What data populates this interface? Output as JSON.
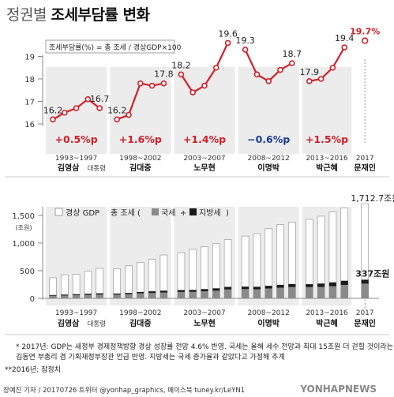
{
  "title": {
    "light": "정권별",
    "bold": "조세부담률 변화"
  },
  "top_box_label": "조세부담률(%) = 총 조세 / 경상GDP×100",
  "bottom_legend": {
    "gdp": "경상 GDP",
    "tax_prefix": "총 조세 (",
    "national": "국세",
    "sep": "+",
    "local": "지방세",
    "tax_suffix": ")"
  },
  "footnotes": [
    "* 2017년: GDP는 새정부 경제정책방향 경상 성장률 전망 4.6% 반영. 국세는 올해 세수 전망과 최대 15조원 더 걷힐 것이라는",
    "김동연 부총리 겸 기획재정부장관 언급 반영. 지방세는 국세 증가율과 같았다고 가정해 추계",
    "**2016년: 잠정치"
  ],
  "credit": "장예진 기자 / 20170726 트위터 @yonhap_graphics, 페이스북 tuney.kr/LeYN1",
  "agency": "YONHAPNEWS",
  "chart_data": [
    {
      "type": "line",
      "title": "조세부담률(%) = 총 조세 / 경상GDP×100",
      "ylim": [
        16,
        20
      ],
      "yticks": [
        16,
        17,
        18,
        19
      ],
      "x": [
        "1993",
        "1994",
        "1995",
        "1996",
        "1997",
        "1998",
        "1999",
        "2000",
        "2001",
        "2002",
        "2003",
        "2004",
        "2005",
        "2006",
        "2007",
        "2008",
        "2009",
        "2010",
        "2011",
        "2012",
        "2013",
        "2014",
        "2015",
        "2016",
        "2017"
      ],
      "values": [
        16.2,
        16.5,
        16.7,
        17.1,
        16.7,
        16.2,
        16.4,
        17.8,
        17.7,
        17.8,
        18.2,
        17.4,
        17.7,
        18.5,
        19.6,
        19.3,
        18.2,
        17.9,
        18.4,
        18.7,
        17.9,
        18.0,
        18.5,
        19.4,
        19.7
      ],
      "point_labels": [
        {
          "x": "1993",
          "label": "16.2"
        },
        {
          "x": "1997",
          "label": "16.7"
        },
        {
          "x": "1998",
          "label": "16.2"
        },
        {
          "x": "2002",
          "label": "17.8"
        },
        {
          "x": "2003",
          "label": "18.2"
        },
        {
          "x": "2007",
          "label": "19.6"
        },
        {
          "x": "2008",
          "label": "19.3"
        },
        {
          "x": "2012",
          "label": "18.7"
        },
        {
          "x": "2013",
          "label": "17.9"
        },
        {
          "x": "2016",
          "label": "19.4"
        },
        {
          "x": "2017",
          "label": "19.7%"
        }
      ],
      "periods": [
        {
          "range": "1993~1997",
          "name": "김영삼",
          "suffix": "대통령",
          "change": "+0.5%p",
          "from": "1993",
          "to": "1997"
        },
        {
          "range": "1998~2002",
          "name": "김대중",
          "suffix": "",
          "change": "+1.6%p",
          "from": "1998",
          "to": "2002"
        },
        {
          "range": "2003~2007",
          "name": "노무현",
          "suffix": "",
          "change": "+1.4%p",
          "from": "2003",
          "to": "2007"
        },
        {
          "range": "2008~2012",
          "name": "이명박",
          "suffix": "",
          "change": "−0.6%p",
          "from": "2008",
          "to": "2012"
        },
        {
          "range": "2013~2016",
          "name": "박근혜",
          "suffix": "",
          "change": "+1.5%p",
          "from": "2013",
          "to": "2016"
        },
        {
          "range": "2017",
          "name": "문재인",
          "suffix": "",
          "change": "",
          "from": "2017",
          "to": "2017"
        }
      ],
      "colors": {
        "line": "#d0202a",
        "positive": "#d0202a",
        "negative": "#1a3d8f",
        "period_bg": "#ececec"
      }
    },
    {
      "type": "bar",
      "ylabel": "(조원)",
      "ylim": [
        0,
        1700
      ],
      "yticks": [
        0,
        500,
        1000,
        1500
      ],
      "x": [
        "1993",
        "1994",
        "1995",
        "1996",
        "1997",
        "1998",
        "1999",
        "2000",
        "2001",
        "2002",
        "2003",
        "2004",
        "2005",
        "2006",
        "2007",
        "2008",
        "2009",
        "2010",
        "2011",
        "2012",
        "2013",
        "2014",
        "2015",
        "2016",
        "2017"
      ],
      "series": [
        {
          "name": "경상 GDP",
          "values": [
            373,
            427,
            437,
            490,
            542,
            537,
            591,
            651,
            707,
            784,
            826,
            887,
            934,
            991,
            1063,
            1126,
            1170,
            1265,
            1333,
            1377,
            1429,
            1486,
            1564,
            1637,
            1712.7
          ]
        },
        {
          "name": "국세",
          "values": [
            46,
            51,
            56,
            62,
            67,
            67,
            75,
            92,
            96,
            104,
            115,
            117,
            128,
            138,
            161,
            167,
            164,
            178,
            192,
            203,
            202,
            206,
            218,
            243,
            266
          ]
        },
        {
          "name": "지방세",
          "values": [
            14,
            17,
            18,
            21,
            24,
            20,
            23,
            24,
            31,
            35,
            35,
            36,
            39,
            43,
            46,
            45,
            45,
            49,
            52,
            54,
            54,
            62,
            71,
            75,
            71
          ]
        }
      ],
      "value_labels": [
        {
          "x": "2017",
          "series": "경상 GDP",
          "label": "1,712.7조원"
        },
        {
          "x": "2017",
          "series": "총 조세",
          "label": "337조원"
        }
      ],
      "colors": {
        "gdp": "#ffffff",
        "gdp_border": "#9a9a9a",
        "national": "#8a8a8a",
        "local": "#1a1a1a",
        "period_bg": "#ececec"
      }
    }
  ]
}
